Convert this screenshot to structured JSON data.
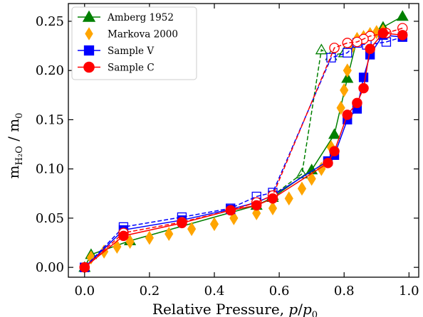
{
  "chart_data": {
    "type": "scatter",
    "xlabel": "Relative Pressure, p/p0",
    "ylabel": "mH2O / m0",
    "xlim": [
      -0.05,
      1.03
    ],
    "ylim": [
      -0.01,
      0.268
    ],
    "xticks": [
      {
        "value": 0.0,
        "label": "0.0"
      },
      {
        "value": 0.2,
        "label": "0.2"
      },
      {
        "value": 0.4,
        "label": "0.4"
      },
      {
        "value": 0.6,
        "label": "0.6"
      },
      {
        "value": 0.8,
        "label": "0.8"
      },
      {
        "value": 1.0,
        "label": "1.0"
      }
    ],
    "yticks": [
      {
        "value": 0.0,
        "label": "0.00"
      },
      {
        "value": 0.05,
        "label": "0.05"
      },
      {
        "value": 0.1,
        "label": "0.10"
      },
      {
        "value": 0.15,
        "label": "0.15"
      },
      {
        "value": 0.2,
        "label": "0.20"
      },
      {
        "value": 0.25,
        "label": "0.25"
      }
    ],
    "legend": {
      "position": "upper-left",
      "entries": [
        "Amberg 1952",
        "Markova 2000",
        "Sample V",
        "Sample C"
      ]
    },
    "grid": false,
    "series": [
      {
        "name": "Amberg 1952",
        "color": "#008000",
        "marker": "triangle",
        "adsorption": {
          "x": [
            0.0,
            0.02,
            0.14,
            0.53,
            0.58,
            0.7,
            0.77,
            0.81,
            0.84,
            0.92,
            0.98
          ],
          "y": [
            0.0,
            0.013,
            0.027,
            0.063,
            0.071,
            0.099,
            0.135,
            0.192,
            0.232,
            0.244,
            0.255
          ]
        },
        "desorption": {
          "x": [
            0.58,
            0.67,
            0.73,
            0.76,
            0.8
          ],
          "y": [
            0.073,
            0.095,
            0.221,
            0.215,
            0.218
          ]
        }
      },
      {
        "name": "Markova 2000",
        "color": "#FFA500",
        "marker": "diamond",
        "points": {
          "x": [
            0.02,
            0.06,
            0.1,
            0.14,
            0.2,
            0.26,
            0.33,
            0.4,
            0.46,
            0.53,
            0.58,
            0.63,
            0.67,
            0.7,
            0.73,
            0.76,
            0.79,
            0.8,
            0.81,
            0.82,
            0.84,
            0.86,
            0.88,
            0.9,
            0.92
          ],
          "y": [
            0.01,
            0.016,
            0.021,
            0.026,
            0.03,
            0.034,
            0.039,
            0.044,
            0.05,
            0.055,
            0.06,
            0.07,
            0.08,
            0.09,
            0.1,
            0.122,
            0.162,
            0.18,
            0.2,
            0.222,
            0.232,
            0.234,
            0.237,
            0.239,
            0.24
          ]
        }
      },
      {
        "name": "Sample V",
        "color": "#0000FF",
        "marker": "square",
        "adsorption": {
          "x": [
            0.0,
            0.12,
            0.3,
            0.45,
            0.53,
            0.58,
            0.75,
            0.77,
            0.81,
            0.84,
            0.86,
            0.88,
            0.92,
            0.98
          ],
          "y": [
            0.0,
            0.038,
            0.048,
            0.059,
            0.066,
            0.073,
            0.108,
            0.114,
            0.15,
            0.161,
            0.193,
            0.216,
            0.236,
            0.234
          ]
        },
        "desorption": {
          "x": [
            0.98,
            0.93,
            0.87,
            0.84,
            0.81,
            0.76,
            0.58,
            0.53,
            0.45,
            0.3,
            0.12,
            0.0
          ],
          "y": [
            0.234,
            0.229,
            0.226,
            0.228,
            0.218,
            0.213,
            0.076,
            0.072,
            0.06,
            0.051,
            0.041,
            0.0
          ]
        }
      },
      {
        "name": "Sample C",
        "color": "#FF0000",
        "marker": "circle",
        "adsorption": {
          "x": [
            0.0,
            0.12,
            0.3,
            0.45,
            0.53,
            0.58,
            0.75,
            0.77,
            0.81,
            0.84,
            0.86,
            0.88,
            0.92,
            0.98
          ],
          "y": [
            0.0,
            0.032,
            0.045,
            0.058,
            0.063,
            0.07,
            0.106,
            0.118,
            0.155,
            0.167,
            0.182,
            0.222,
            0.238,
            0.236
          ]
        },
        "desorption": {
          "x": [
            0.98,
            0.93,
            0.88,
            0.86,
            0.84,
            0.81,
            0.77,
            0.58,
            0.53,
            0.45,
            0.3,
            0.12,
            0.0
          ],
          "y": [
            0.243,
            0.238,
            0.235,
            0.232,
            0.229,
            0.228,
            0.223,
            0.073,
            0.066,
            0.058,
            0.046,
            0.035,
            0.0
          ]
        }
      }
    ]
  }
}
